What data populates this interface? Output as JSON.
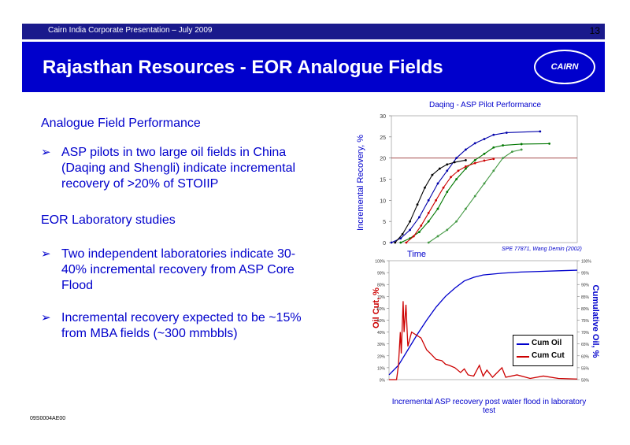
{
  "header": {
    "subtitle": "Cairn India Corporate Presentation – July 2009",
    "page_number": "13",
    "title": "Rajasthan Resources - EOR Analogue Fields",
    "logo_text": "CAIRN"
  },
  "content": {
    "heading1": "Analogue Field Performance",
    "bullet1": "ASP pilots in two large oil fields in China (Daqing and Shengli) indicate incremental recovery of >20% of STOIIP",
    "heading2": "EOR Laboratory studies",
    "bullet2": "Two independent laboratories indicate 30-40% incremental recovery from ASP Core Flood",
    "bullet3": "Incremental recovery expected to be ~15% from MBA fields (~300 mmbbls)",
    "bullet_glyph": "➢"
  },
  "footer": {
    "doc_code": "09S0004AE00"
  },
  "chart_data": [
    {
      "type": "line",
      "title": "Daqing - ASP Pilot Performance",
      "xlabel": "Time",
      "ylabel": "Incremental Recovery, %",
      "yticks": [
        "30",
        "25",
        "20",
        "15",
        "10",
        "5",
        "0"
      ],
      "ylim": [
        0,
        30
      ],
      "reference_line": 20,
      "annotation": "SPE 77871, Wang Demin  (2002)",
      "series": [
        {
          "color": "#0000aa",
          "points": [
            [
              0,
              0
            ],
            [
              0.05,
              1
            ],
            [
              0.1,
              3
            ],
            [
              0.15,
              6
            ],
            [
              0.2,
              10
            ],
            [
              0.25,
              14
            ],
            [
              0.3,
              17
            ],
            [
              0.35,
              20
            ],
            [
              0.4,
              22
            ],
            [
              0.45,
              23.5
            ],
            [
              0.5,
              24.5
            ],
            [
              0.55,
              25.5
            ],
            [
              0.62,
              26
            ],
            [
              0.8,
              26.3
            ]
          ]
        },
        {
          "color": "#007700",
          "points": [
            [
              0.05,
              0
            ],
            [
              0.1,
              1
            ],
            [
              0.15,
              2.5
            ],
            [
              0.2,
              5
            ],
            [
              0.25,
              8
            ],
            [
              0.3,
              12
            ],
            [
              0.35,
              15
            ],
            [
              0.4,
              17.5
            ],
            [
              0.45,
              19.5
            ],
            [
              0.5,
              21
            ],
            [
              0.55,
              22.5
            ],
            [
              0.6,
              23
            ],
            [
              0.7,
              23.3
            ],
            [
              0.85,
              23.4
            ]
          ]
        },
        {
          "color": "#cc0000",
          "points": [
            [
              0.08,
              0
            ],
            [
              0.12,
              1.5
            ],
            [
              0.16,
              4
            ],
            [
              0.2,
              7
            ],
            [
              0.24,
              10
            ],
            [
              0.28,
              13
            ],
            [
              0.32,
              15.5
            ],
            [
              0.36,
              17
            ],
            [
              0.4,
              18
            ],
            [
              0.45,
              18.8
            ],
            [
              0.5,
              19.4
            ],
            [
              0.55,
              19.8
            ]
          ]
        },
        {
          "color": "#000000",
          "points": [
            [
              0.02,
              0
            ],
            [
              0.06,
              2
            ],
            [
              0.1,
              5
            ],
            [
              0.14,
              9
            ],
            [
              0.18,
              13
            ],
            [
              0.22,
              16
            ],
            [
              0.26,
              17.5
            ],
            [
              0.3,
              18.5
            ],
            [
              0.34,
              19
            ],
            [
              0.4,
              19.5
            ]
          ]
        },
        {
          "color": "#449944",
          "points": [
            [
              0.2,
              0
            ],
            [
              0.25,
              1.5
            ],
            [
              0.3,
              3
            ],
            [
              0.35,
              5
            ],
            [
              0.4,
              8
            ],
            [
              0.45,
              11
            ],
            [
              0.5,
              14
            ],
            [
              0.55,
              17
            ],
            [
              0.6,
              20
            ],
            [
              0.65,
              21.5
            ],
            [
              0.7,
              22
            ]
          ]
        }
      ]
    },
    {
      "type": "line",
      "title": "",
      "xlabel": "",
      "ylabel_left": "Oil Cut, %",
      "ylabel_right": "Cumulative Oil, %",
      "caption": "Incremental ASP recovery post water flood in laboratory test",
      "left_ticks": [
        "100%",
        "90%",
        "80%",
        "70%",
        "60%",
        "50%",
        "40%",
        "30%",
        "20%",
        "10%",
        "0%"
      ],
      "right_ticks": [
        "100%",
        "95%",
        "90%",
        "85%",
        "80%",
        "75%",
        "70%",
        "65%",
        "60%",
        "55%",
        "50%"
      ],
      "legend_position": "bottom-right",
      "series": [
        {
          "name": "Cum Oil",
          "color": "#0000cc",
          "points": [
            [
              0,
              4
            ],
            [
              0.05,
              12
            ],
            [
              0.1,
              25
            ],
            [
              0.15,
              38
            ],
            [
              0.2,
              50
            ],
            [
              0.25,
              61
            ],
            [
              0.3,
              70
            ],
            [
              0.35,
              77
            ],
            [
              0.4,
              83
            ],
            [
              0.45,
              86
            ],
            [
              0.5,
              88
            ],
            [
              0.6,
              89.5
            ],
            [
              0.7,
              90.5
            ],
            [
              0.8,
              91
            ],
            [
              0.9,
              91.5
            ],
            [
              1,
              92
            ]
          ]
        },
        {
          "name": "Cum Cut",
          "color": "#cc0000",
          "points": [
            [
              0,
              0
            ],
            [
              0.04,
              0
            ],
            [
              0.05,
              12
            ],
            [
              0.06,
              40
            ],
            [
              0.065,
              22
            ],
            [
              0.075,
              66
            ],
            [
              0.08,
              40
            ],
            [
              0.09,
              63
            ],
            [
              0.1,
              28
            ],
            [
              0.12,
              40
            ],
            [
              0.14,
              38
            ],
            [
              0.17,
              35
            ],
            [
              0.2,
              25
            ],
            [
              0.22,
              22
            ],
            [
              0.25,
              17
            ],
            [
              0.28,
              16
            ],
            [
              0.3,
              13
            ],
            [
              0.32,
              12
            ],
            [
              0.35,
              10
            ],
            [
              0.38,
              6
            ],
            [
              0.4,
              9
            ],
            [
              0.42,
              4
            ],
            [
              0.45,
              3
            ],
            [
              0.48,
              12
            ],
            [
              0.5,
              3
            ],
            [
              0.52,
              8
            ],
            [
              0.55,
              2
            ],
            [
              0.6,
              10
            ],
            [
              0.62,
              2
            ],
            [
              0.68,
              4
            ],
            [
              0.75,
              1
            ],
            [
              0.82,
              3
            ],
            [
              0.9,
              1
            ],
            [
              1,
              0.5
            ]
          ]
        }
      ]
    }
  ]
}
